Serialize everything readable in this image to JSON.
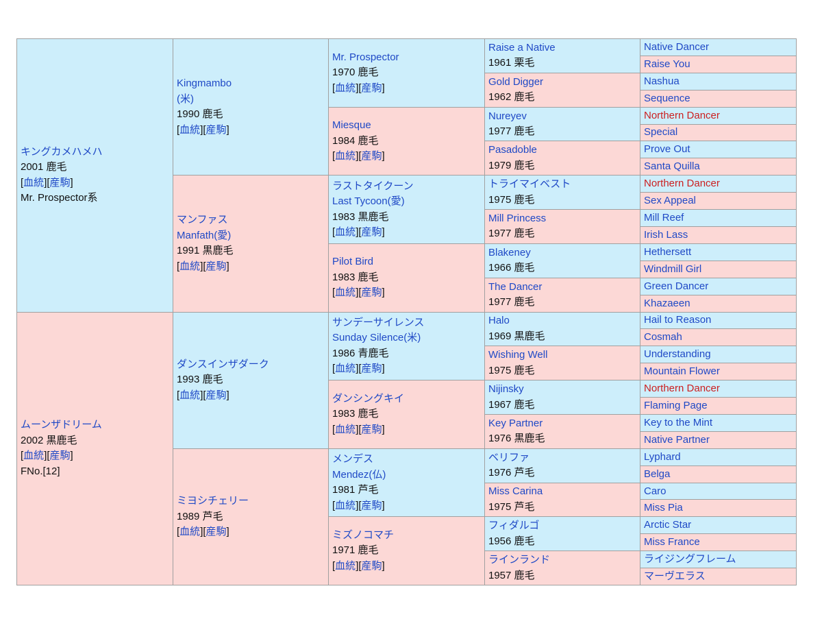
{
  "colors": {
    "sire_bg": "#cdeefb",
    "dam_bg": "#fcd8d6",
    "link": "#1f49c6",
    "highlight": "#cc1f1f",
    "text": "#111111",
    "border": "#a0a0a0"
  },
  "links": {
    "bloodline": "血統",
    "offspring": "産駒"
  },
  "g1": [
    {
      "name": "キングカメハメハ",
      "info": "2001 鹿毛",
      "line_note": "Mr. Prospector系"
    },
    {
      "name": "ムーンザドリーム",
      "info": "2002 黒鹿毛",
      "family_no": "FNo.[12]"
    }
  ],
  "g2": [
    {
      "name": "Kingmambo",
      "origin": "(米)",
      "info": "1990 鹿毛"
    },
    {
      "name": "マンファス",
      "name2": "Manfath(愛)",
      "info": "1991 黒鹿毛"
    },
    {
      "name": "ダンスインザダーク",
      "info": "1993 鹿毛"
    },
    {
      "name": "ミヨシチェリー",
      "info": "1989 芦毛"
    }
  ],
  "g3": [
    {
      "name": "Mr. Prospector",
      "info": "1970 鹿毛"
    },
    {
      "name": "Miesque",
      "info": "1984 鹿毛"
    },
    {
      "name": "ラストタイクーン",
      "name2": "Last Tycoon(愛)",
      "info": "1983 黒鹿毛"
    },
    {
      "name": "Pilot Bird",
      "info": "1983 鹿毛"
    },
    {
      "name": "サンデーサイレンス",
      "name2": "Sunday Silence(米)",
      "info": "1986 青鹿毛"
    },
    {
      "name": "ダンシングキイ",
      "info": "1983 鹿毛"
    },
    {
      "name": "メンデス",
      "name2": "Mendez(仏)",
      "info": "1981 芦毛"
    },
    {
      "name": "ミズノコマチ",
      "info": "1971 鹿毛"
    }
  ],
  "g4": [
    {
      "name": "Raise a Native",
      "info": "1961 栗毛"
    },
    {
      "name": "Gold Digger",
      "info": "1962 鹿毛"
    },
    {
      "name": "Nureyev",
      "info": "1977 鹿毛"
    },
    {
      "name": "Pasadoble",
      "info": "1979 鹿毛"
    },
    {
      "name": "トライマイベスト",
      "info": "1975 鹿毛"
    },
    {
      "name": "Mill Princess",
      "info": "1977 鹿毛"
    },
    {
      "name": "Blakeney",
      "info": "1966 鹿毛"
    },
    {
      "name": "The Dancer",
      "info": "1977 鹿毛"
    },
    {
      "name": "Halo",
      "info": "1969 黒鹿毛"
    },
    {
      "name": "Wishing Well",
      "info": "1975 鹿毛"
    },
    {
      "name": "Nijinsky",
      "info": "1967 鹿毛"
    },
    {
      "name": "Key Partner",
      "info": "1976 黒鹿毛"
    },
    {
      "name": "ベリファ",
      "info": "1976 芦毛"
    },
    {
      "name": "Miss Carina",
      "info": "1975 芦毛"
    },
    {
      "name": "フィダルゴ",
      "info": "1956 鹿毛"
    },
    {
      "name": "ラインランド",
      "info": "1957 鹿毛"
    }
  ],
  "g5": [
    {
      "name": "Native Dancer"
    },
    {
      "name": "Raise You"
    },
    {
      "name": "Nashua"
    },
    {
      "name": "Sequence"
    },
    {
      "name": "Northern Dancer",
      "highlight": true
    },
    {
      "name": "Special"
    },
    {
      "name": "Prove Out"
    },
    {
      "name": "Santa Quilla"
    },
    {
      "name": "Northern Dancer",
      "highlight": true
    },
    {
      "name": "Sex Appeal"
    },
    {
      "name": "Mill Reef"
    },
    {
      "name": "Irish Lass"
    },
    {
      "name": "Hethersett"
    },
    {
      "name": "Windmill Girl"
    },
    {
      "name": "Green Dancer"
    },
    {
      "name": "Khazaeen"
    },
    {
      "name": "Hail to Reason"
    },
    {
      "name": "Cosmah"
    },
    {
      "name": "Understanding"
    },
    {
      "name": "Mountain Flower"
    },
    {
      "name": "Northern Dancer",
      "highlight": true
    },
    {
      "name": "Flaming Page"
    },
    {
      "name": "Key to the Mint"
    },
    {
      "name": "Native Partner"
    },
    {
      "name": "Lyphard"
    },
    {
      "name": "Belga"
    },
    {
      "name": "Caro"
    },
    {
      "name": "Miss Pia"
    },
    {
      "name": "Arctic Star"
    },
    {
      "name": "Miss France"
    },
    {
      "name": "ライジングフレーム"
    },
    {
      "name": "マーヴエラス"
    }
  ]
}
